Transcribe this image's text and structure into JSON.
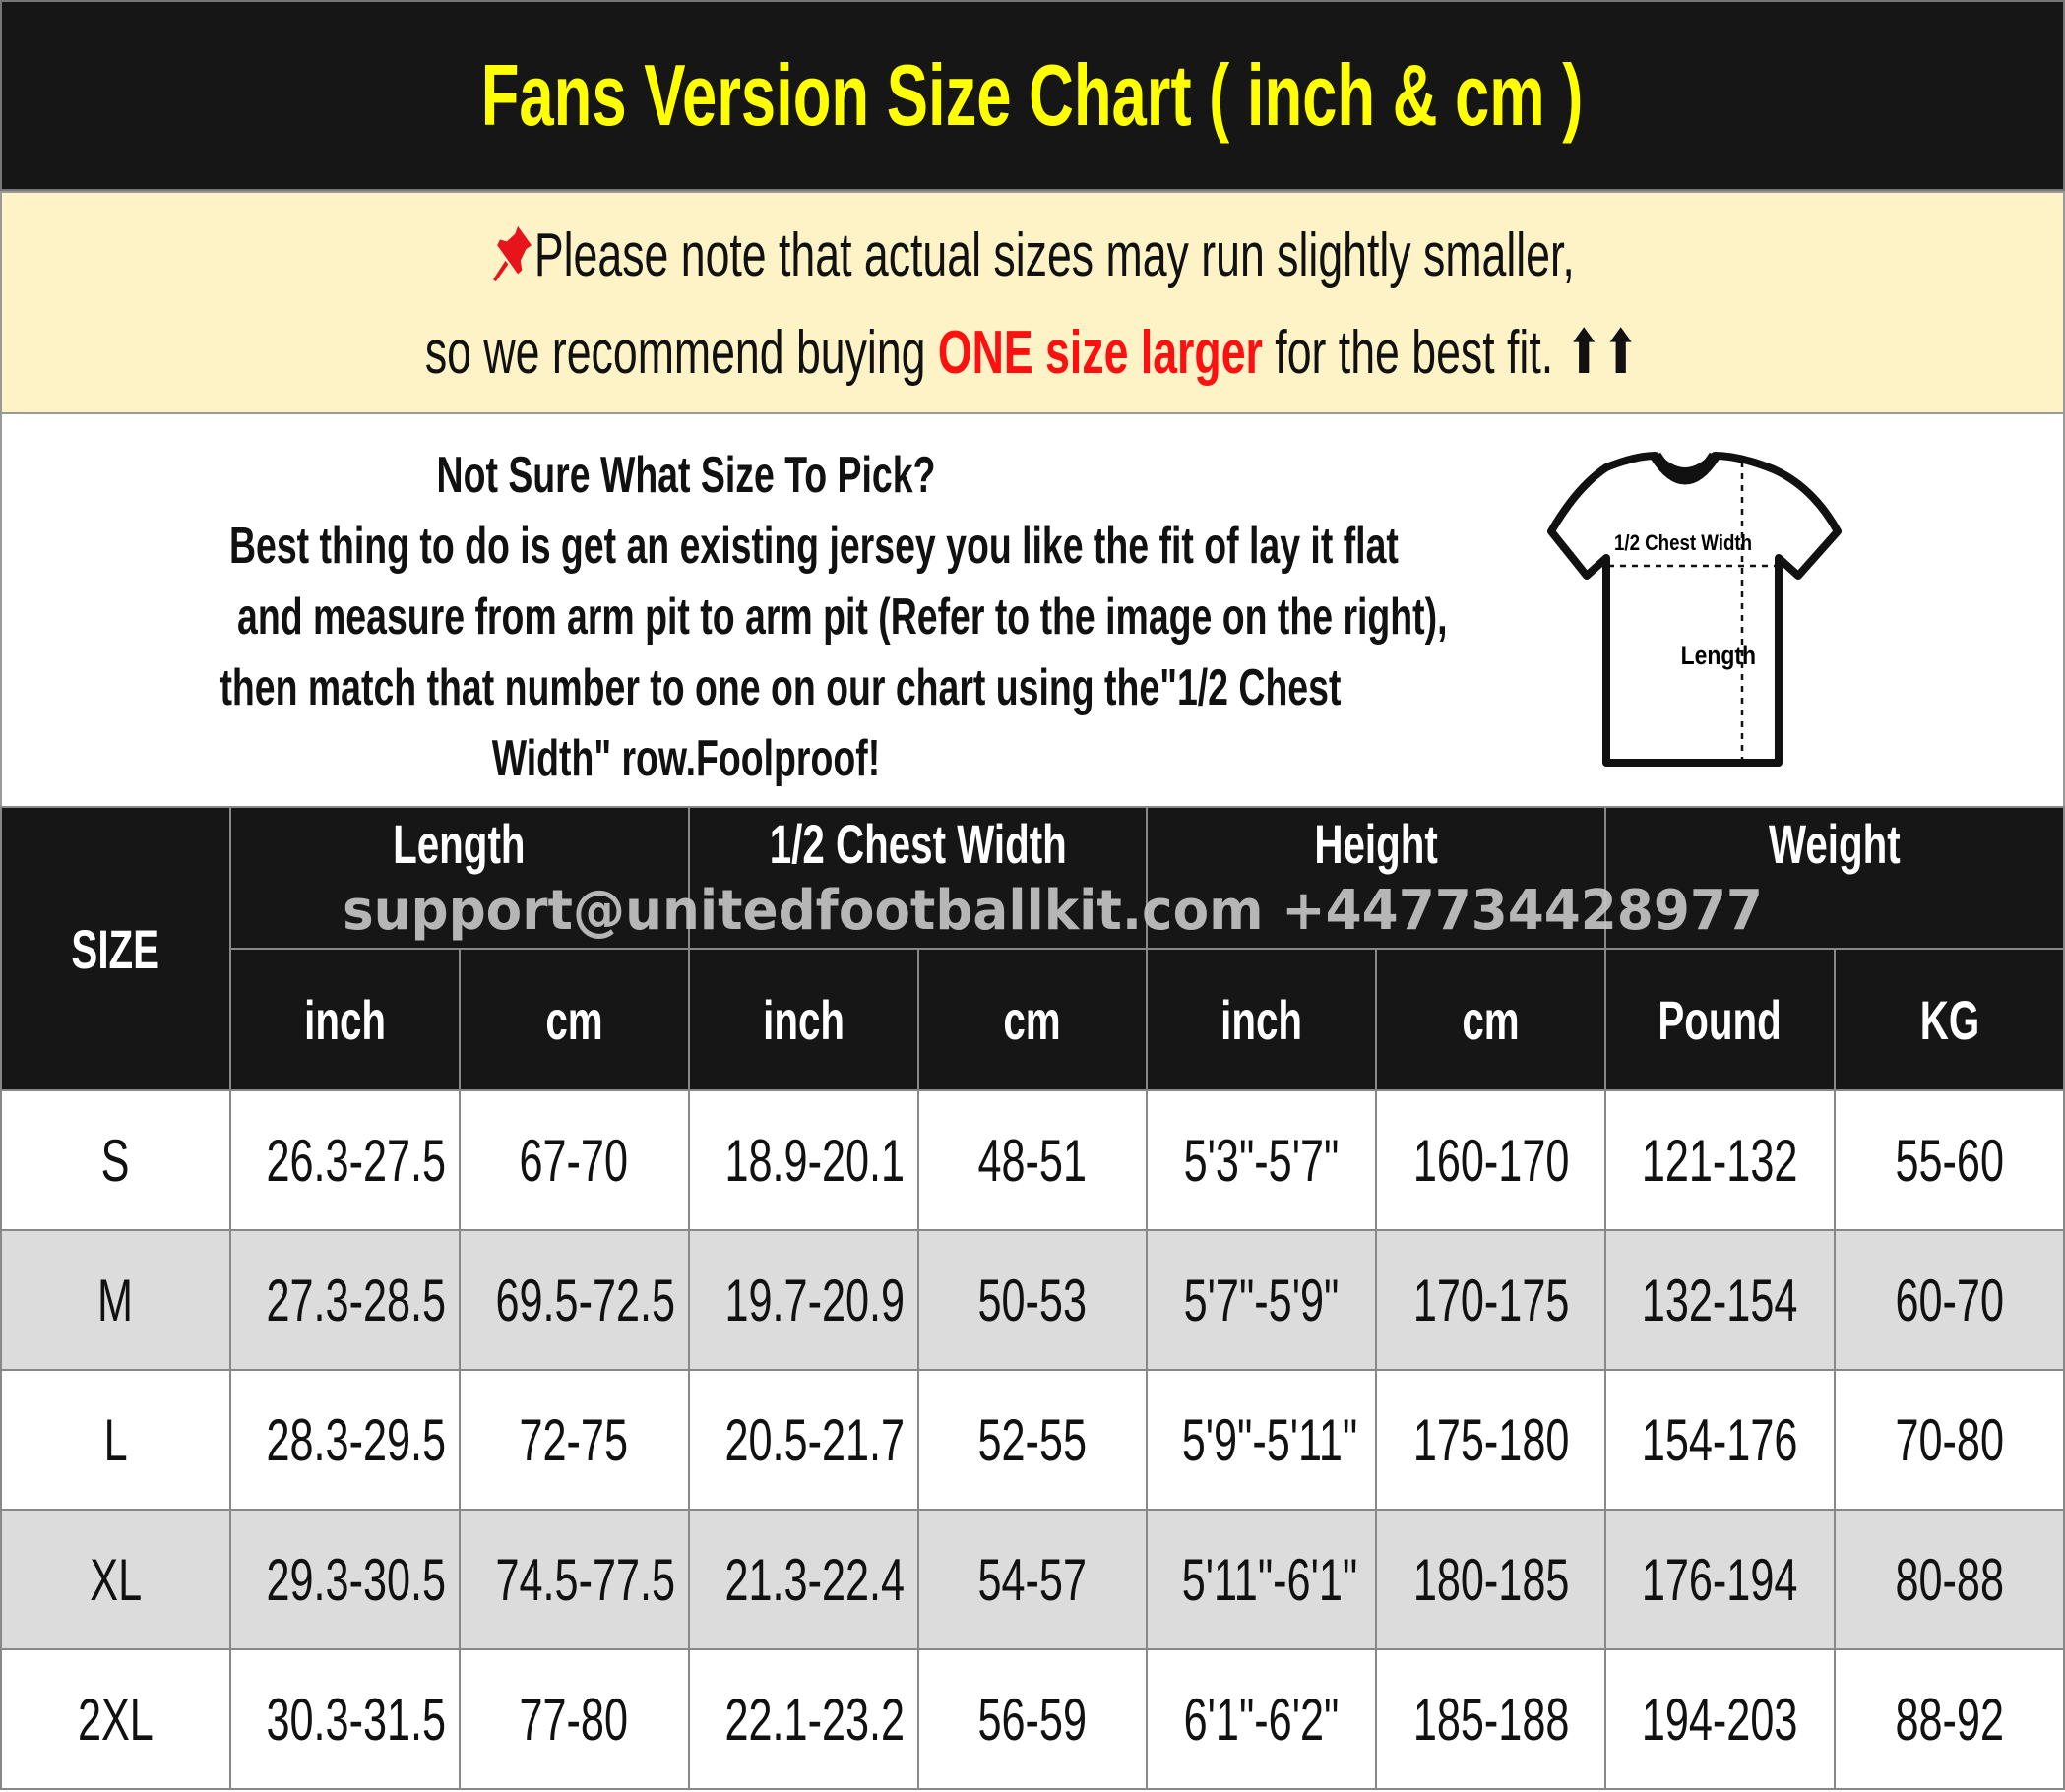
{
  "title": "Fans Version Size Chart ( inch & cm )",
  "notice": {
    "icon": "pushpin-icon",
    "line1": "Please note that actual sizes may run slightly smaller,",
    "line2_pre": "so we recommend buying ",
    "line2_highlight": "ONE size larger",
    "line2_post": " for the best fit. ⬆⬆",
    "highlight_color": "#ff1010"
  },
  "info": {
    "lines": [
      "Not Sure What Size To Pick?",
      "Best thing to do is get an existing jersey you like the fit of lay it flat",
      "and measure from arm pit to arm pit (Refer to the image on the right),",
      "then match that number to one on our chart using the\"1/2 Chest",
      "Width\" row.Foolproof!"
    ],
    "diagram": {
      "chest_label": "1/2 Chest Width",
      "length_label": "Length"
    }
  },
  "watermark": "support@unitedfootballkit.com  +447734428977",
  "table": {
    "size_header": "SIZE",
    "groups": [
      "Length",
      "1/2 Chest Width",
      "Height",
      "Weight"
    ],
    "units": [
      "inch",
      "cm",
      "inch",
      "cm",
      "inch",
      "cm",
      "Pound",
      "KG"
    ],
    "rows": [
      [
        "S",
        "26.3-27.5",
        "67-70",
        "18.9-20.1",
        "48-51",
        "5'3\"-5'7\"",
        "160-170",
        "121-132",
        "55-60"
      ],
      [
        "M",
        "27.3-28.5",
        "69.5-72.5",
        "19.7-20.9",
        "50-53",
        "5'7\"-5'9\"",
        "170-175",
        "132-154",
        "60-70"
      ],
      [
        "L",
        "28.3-29.5",
        "72-75",
        "20.5-21.7",
        "52-55",
        "5'9\"-5'11\"",
        "175-180",
        "154-176",
        "70-80"
      ],
      [
        "XL",
        "29.3-30.5",
        "74.5-77.5",
        "21.3-22.4",
        "54-57",
        "5'11\"-6'1\"",
        "180-185",
        "176-194",
        "80-88"
      ],
      [
        "2XL",
        "30.3-31.5",
        "77-80",
        "22.1-23.2",
        "56-59",
        "6'1\"-6'2\"",
        "185-188",
        "194-203",
        "88-92"
      ]
    ]
  },
  "colors": {
    "title_bg": "#161616",
    "title_text": "#ffff00",
    "notice_bg": "#fdf3c6",
    "alt_row": "#dcdcdc"
  }
}
